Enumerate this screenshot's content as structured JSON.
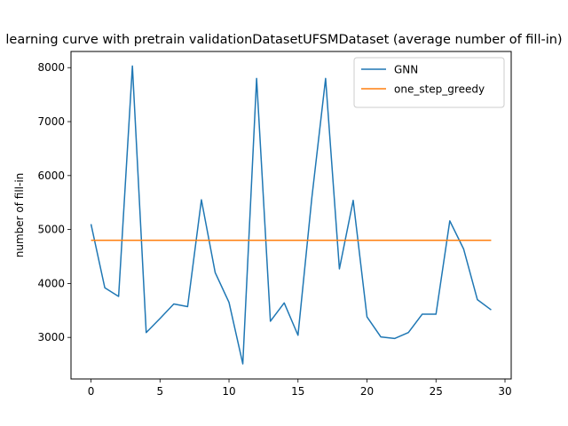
{
  "chart_data": {
    "type": "line",
    "title": "learning curve with pretrain validationDatasetUFSMDataset (average number of fill-in)",
    "xlabel": "",
    "ylabel": "number of fill-in",
    "xlim": [
      -1.45,
      30.45
    ],
    "ylim": [
      2230,
      8300
    ],
    "xticks": [
      0,
      5,
      10,
      15,
      20,
      25,
      30
    ],
    "yticks": [
      3000,
      4000,
      5000,
      6000,
      7000,
      8000
    ],
    "grid": false,
    "legend_position": "upper right",
    "series": [
      {
        "name": "GNN",
        "color": "#1f77b4",
        "x": [
          0,
          1,
          2,
          3,
          4,
          5,
          6,
          7,
          8,
          9,
          10,
          11,
          12,
          13,
          14,
          15,
          16,
          17,
          18,
          19,
          20,
          21,
          22,
          23,
          24,
          25,
          26,
          27,
          28,
          29
        ],
        "y": [
          5100,
          3920,
          3760,
          8030,
          3090,
          3350,
          3620,
          3570,
          5550,
          4200,
          3650,
          2510,
          7800,
          3300,
          3640,
          3040,
          5580,
          7800,
          4270,
          5540,
          3380,
          3010,
          2980,
          3090,
          3430,
          3430,
          5160,
          4640,
          3700,
          3510
        ]
      },
      {
        "name": "one_step_greedy",
        "color": "#ff7f0e",
        "x": [
          0,
          1,
          2,
          3,
          4,
          5,
          6,
          7,
          8,
          9,
          10,
          11,
          12,
          13,
          14,
          15,
          16,
          17,
          18,
          19,
          20,
          21,
          22,
          23,
          24,
          25,
          26,
          27,
          28,
          29
        ],
        "y": [
          4800,
          4800,
          4800,
          4800,
          4800,
          4800,
          4800,
          4800,
          4800,
          4800,
          4800,
          4800,
          4800,
          4800,
          4800,
          4800,
          4800,
          4800,
          4800,
          4800,
          4800,
          4800,
          4800,
          4800,
          4800,
          4800,
          4800,
          4800,
          4800,
          4800
        ]
      }
    ]
  }
}
